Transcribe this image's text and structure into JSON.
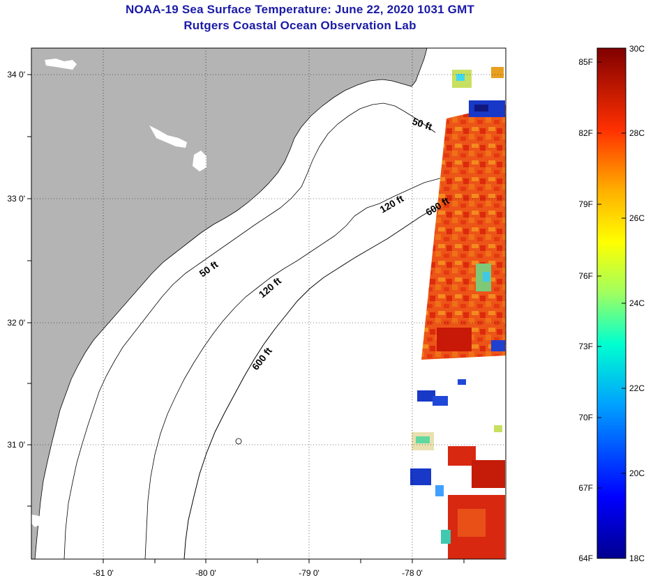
{
  "title": {
    "line1": "NOAA-19 Sea Surface Temperature:  June 22, 2020 1031 GMT",
    "line2": "Rutgers Coastal Ocean Observation Lab"
  },
  "axes": {
    "lat_ticks": [
      "34 0'",
      "33 0'",
      "32 0'",
      "31 0'"
    ],
    "lon_ticks": [
      "-81 0'",
      "-80 0'",
      "-79 0'",
      "-78 0'"
    ]
  },
  "contours": {
    "label_50": "50 ft",
    "label_120": "120 ft",
    "label_600": "600 ft"
  },
  "colorbar": {
    "fahrenheit": [
      "85F",
      "82F",
      "79F",
      "76F",
      "73F",
      "70F",
      "67F",
      "64F"
    ],
    "celsius": [
      "30C",
      "28C",
      "26C",
      "24C",
      "22C",
      "20C",
      "18C"
    ],
    "range_c": [
      18,
      30
    ]
  },
  "colors": {
    "land": "#b4b4b4",
    "title": "#1a1aa6",
    "sst_warm": "#e8481a",
    "sst_hot": "#c01808",
    "sst_cool": "#1838c8"
  }
}
